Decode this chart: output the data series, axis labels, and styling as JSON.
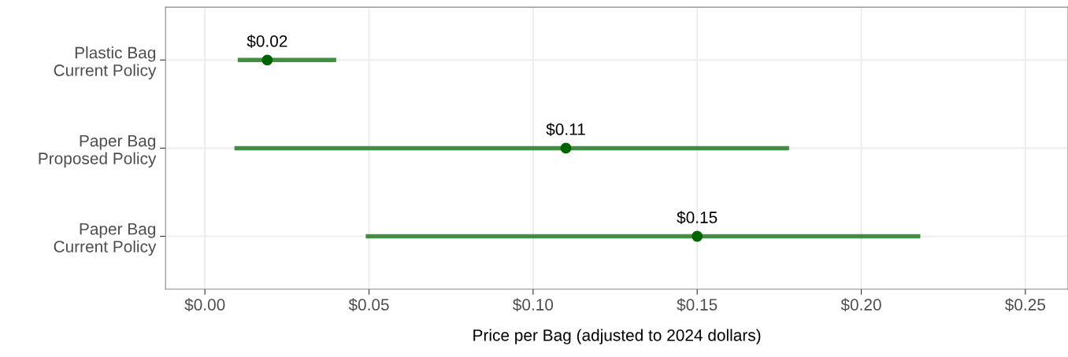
{
  "chart_data": {
    "type": "scatter",
    "orientation": "horizontal",
    "categories": [
      "Plastic Bag\nCurrent Policy",
      "Paper Bag\nProposed Policy",
      "Paper Bag\nCurrent Policy"
    ],
    "values": [
      0.019,
      0.11,
      0.15
    ],
    "errors": [
      [
        0.01,
        0.04
      ],
      [
        0.009,
        0.178
      ],
      [
        0.049,
        0.218
      ]
    ],
    "value_labels": [
      "$0.02",
      "$0.11",
      "$0.15"
    ],
    "color": "#006400",
    "xlabel": "Price per Bag (adjusted to 2024 dollars)",
    "xlim": [
      -0.012,
      0.263
    ],
    "xticks": [
      {
        "value": 0,
        "label": "$0.00"
      },
      {
        "value": 0.05,
        "label": "$0.05"
      },
      {
        "value": 0.1,
        "label": "$0.10"
      },
      {
        "value": 0.15,
        "label": "$0.15"
      },
      {
        "value": 0.2,
        "label": "$0.20"
      },
      {
        "value": 0.25,
        "label": "$0.25"
      }
    ],
    "grid": true,
    "marker": "circle"
  }
}
